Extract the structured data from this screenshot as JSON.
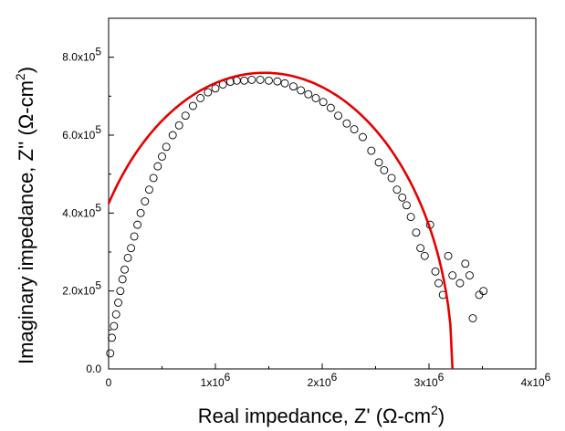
{
  "chart_data": {
    "type": "scatter",
    "x_label": {
      "prefix": "Real impedance, Z' (Ω-cm",
      "sup": "2",
      "suffix": ")"
    },
    "y_label": {
      "prefix": "Imaginary impedance, Z'' (Ω-cm",
      "sup": "2",
      "suffix": ")"
    },
    "x_axis": {
      "range": [
        0,
        4000000
      ],
      "ticks": [
        {
          "value": 0,
          "text": "0",
          "sup": ""
        },
        {
          "value": 1000000,
          "text": "1x10",
          "sup": "6"
        },
        {
          "value": 2000000,
          "text": "2x10",
          "sup": "6"
        },
        {
          "value": 3000000,
          "text": "3x10",
          "sup": "6"
        },
        {
          "value": 4000000,
          "text": "4x10",
          "sup": "6"
        }
      ]
    },
    "y_axis": {
      "range": [
        0,
        900000
      ],
      "ticks": [
        {
          "value": 0,
          "text": "0.0",
          "sup": ""
        },
        {
          "value": 200000,
          "text": "2.0x10",
          "sup": "5"
        },
        {
          "value": 400000,
          "text": "4.0x10",
          "sup": "5"
        },
        {
          "value": 600000,
          "text": "6.0x10",
          "sup": "5"
        },
        {
          "value": 800000,
          "text": "8.0x10",
          "sup": "5"
        }
      ]
    },
    "grid": false,
    "series": [
      {
        "kind": "markers",
        "marker": "open-circle",
        "color": "#000000",
        "points": [
          [
            15000,
            40000
          ],
          [
            30000,
            80000
          ],
          [
            50000,
            110000
          ],
          [
            70000,
            140000
          ],
          [
            90000,
            170000
          ],
          [
            110000,
            200000
          ],
          [
            130000,
            230000
          ],
          [
            150000,
            255000
          ],
          [
            180000,
            285000
          ],
          [
            210000,
            310000
          ],
          [
            240000,
            340000
          ],
          [
            270000,
            370000
          ],
          [
            300000,
            400000
          ],
          [
            340000,
            430000
          ],
          [
            380000,
            460000
          ],
          [
            420000,
            490000
          ],
          [
            460000,
            520000
          ],
          [
            500000,
            545000
          ],
          [
            540000,
            570000
          ],
          [
            600000,
            600000
          ],
          [
            660000,
            625000
          ],
          [
            720000,
            650000
          ],
          [
            790000,
            675000
          ],
          [
            860000,
            695000
          ],
          [
            930000,
            710000
          ],
          [
            1000000,
            720000
          ],
          [
            1070000,
            730000
          ],
          [
            1140000,
            737000
          ],
          [
            1200000,
            740000
          ],
          [
            1270000,
            740000
          ],
          [
            1340000,
            742000
          ],
          [
            1420000,
            742000
          ],
          [
            1500000,
            740000
          ],
          [
            1580000,
            738000
          ],
          [
            1650000,
            733000
          ],
          [
            1730000,
            725000
          ],
          [
            1800000,
            715000
          ],
          [
            1870000,
            705000
          ],
          [
            1940000,
            695000
          ],
          [
            2010000,
            685000
          ],
          [
            2080000,
            670000
          ],
          [
            2150000,
            650000
          ],
          [
            2230000,
            630000
          ],
          [
            2300000,
            615000
          ],
          [
            2380000,
            595000
          ],
          [
            2460000,
            560000
          ],
          [
            2530000,
            530000
          ],
          [
            2580000,
            510000
          ],
          [
            2650000,
            490000
          ],
          [
            2700000,
            460000
          ],
          [
            2750000,
            440000
          ],
          [
            2790000,
            420000
          ],
          [
            2830000,
            390000
          ],
          [
            2880000,
            350000
          ],
          [
            2920000,
            310000
          ],
          [
            2960000,
            290000
          ],
          [
            3010000,
            370000
          ],
          [
            3060000,
            250000
          ],
          [
            3090000,
            220000
          ],
          [
            3130000,
            190000
          ],
          [
            3180000,
            290000
          ],
          [
            3220000,
            240000
          ],
          [
            3290000,
            220000
          ],
          [
            3340000,
            270000
          ],
          [
            3380000,
            240000
          ],
          [
            3410000,
            130000
          ],
          [
            3470000,
            190000
          ],
          [
            3510000,
            200000
          ]
        ]
      },
      {
        "kind": "fit-line",
        "color": "#e60000",
        "center_x": 1460000,
        "radius_x": 1760000,
        "height": 760000,
        "x_start": 0,
        "x_end": 3220000
      }
    ]
  }
}
